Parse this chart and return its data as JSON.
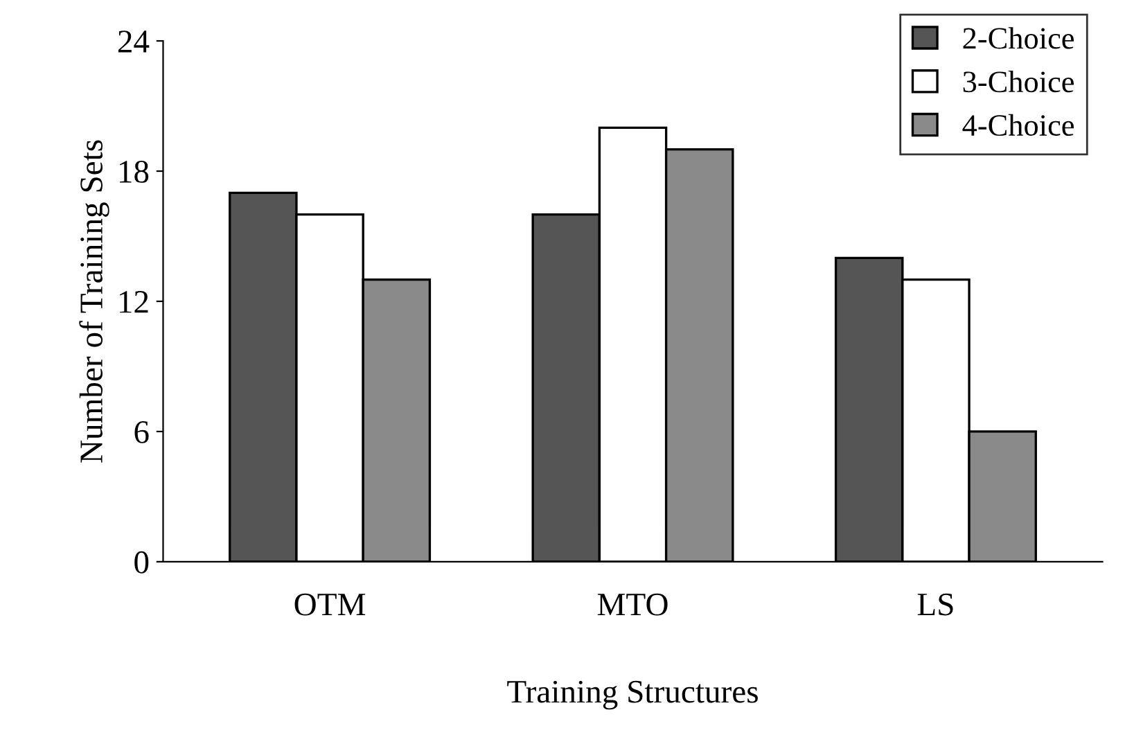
{
  "chart_data": {
    "type": "bar",
    "xlabel": "Training Structures",
    "ylabel": "Number of Training Sets",
    "categories": [
      "OTM",
      "MTO",
      "LS"
    ],
    "series": [
      {
        "name": "2-Choice",
        "color": "#555555",
        "values": [
          17,
          16,
          14
        ]
      },
      {
        "name": "3-Choice",
        "color": "#ffffff",
        "values": [
          16,
          20,
          13
        ]
      },
      {
        "name": "4-Choice",
        "color": "#8a8a8a",
        "values": [
          13,
          19,
          6
        ]
      }
    ],
    "ylim": [
      0,
      24
    ],
    "yticks": [
      0,
      6,
      12,
      18,
      24
    ],
    "grid": false,
    "legend": "top right"
  }
}
